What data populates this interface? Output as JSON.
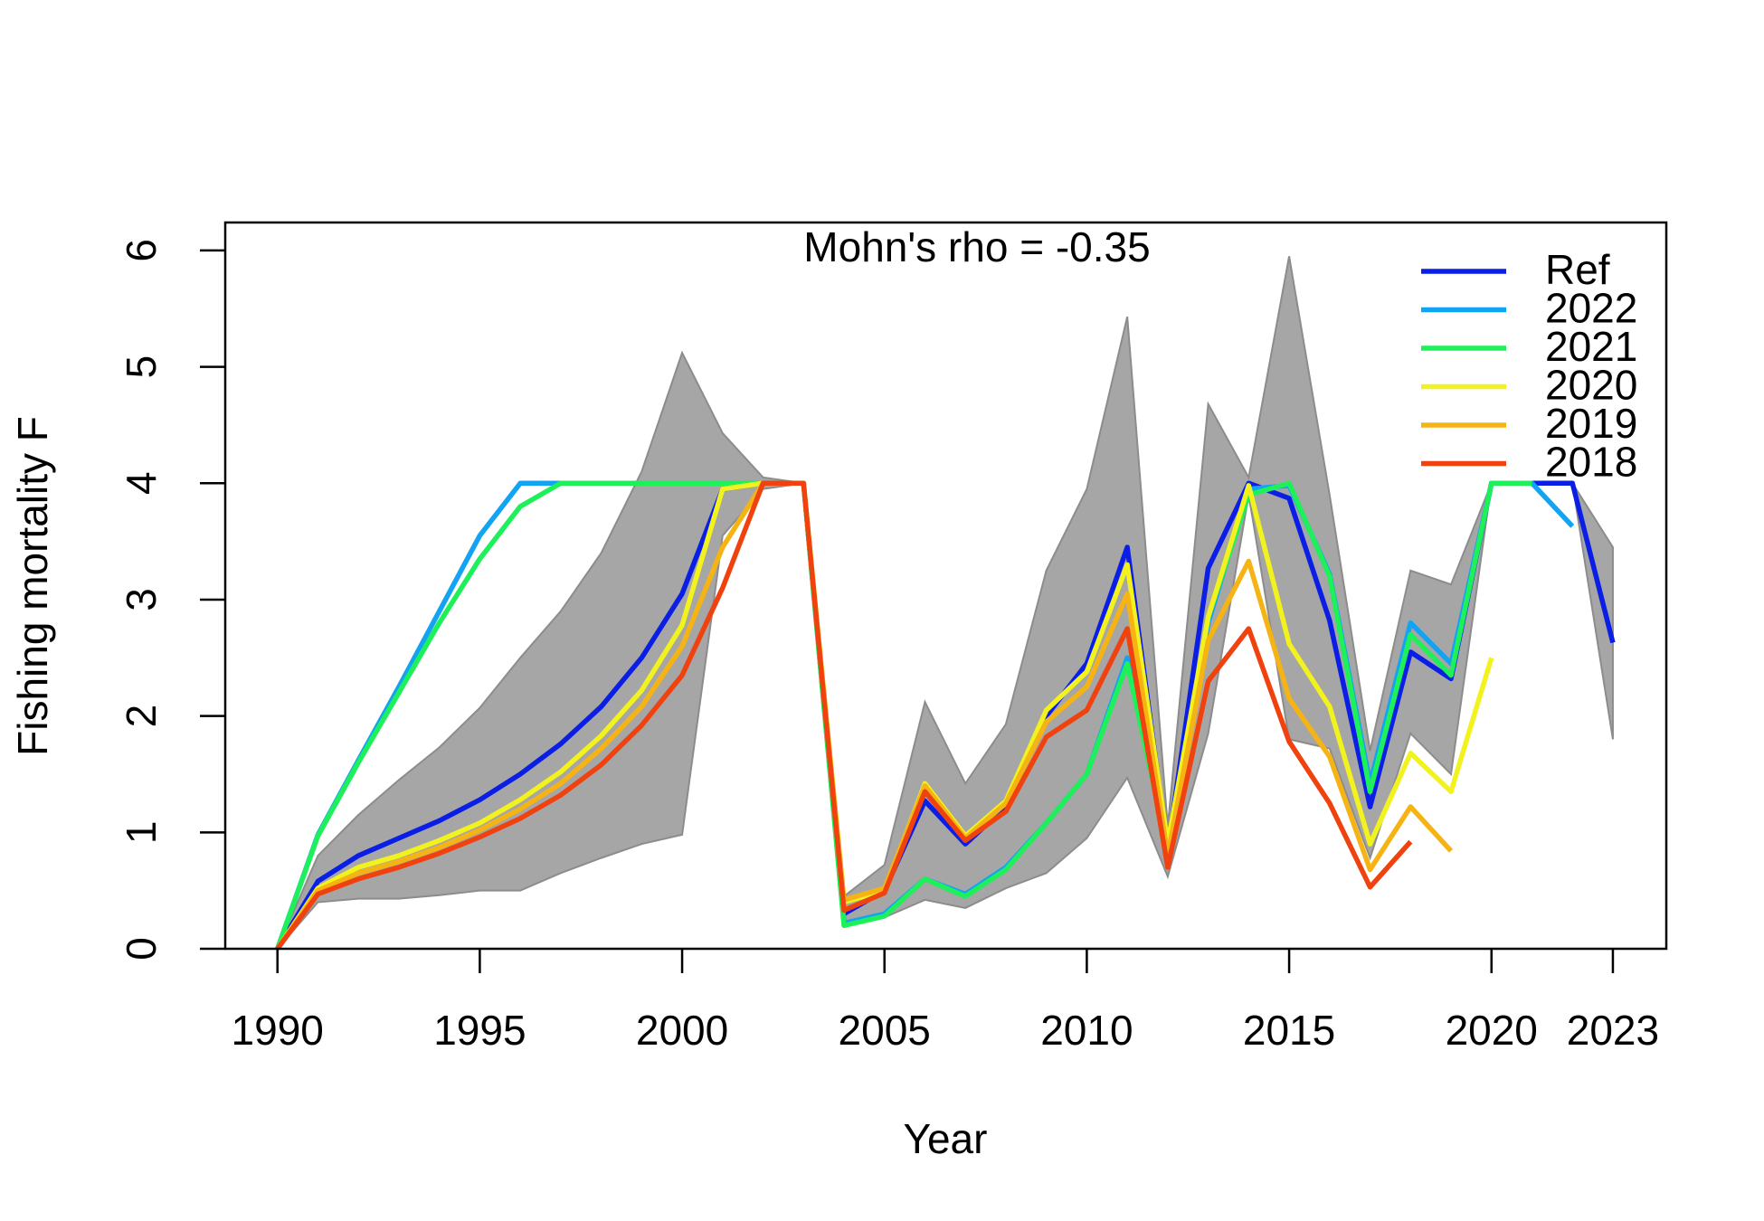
{
  "chart_data": {
    "type": "line",
    "annotation": "Mohn's rho = -0.35",
    "xlabel": "Year",
    "ylabel": "Fishing mortality F",
    "x": [
      1990,
      1991,
      1992,
      1993,
      1994,
      1995,
      1996,
      1997,
      1998,
      1999,
      2000,
      2001,
      2002,
      2003,
      2004,
      2005,
      2006,
      2007,
      2008,
      2009,
      2010,
      2011,
      2012,
      2013,
      2014,
      2015,
      2016,
      2017,
      2018,
      2019,
      2020,
      2021,
      2022,
      2023
    ],
    "xlim": [
      1988.71,
      2024.32
    ],
    "xticks": [
      1990,
      1995,
      2000,
      2005,
      2010,
      2015,
      2020,
      2023
    ],
    "ylim": [
      0,
      6.24
    ],
    "yticks": [
      0,
      1,
      2,
      3,
      4,
      5,
      6
    ],
    "legend": "topright",
    "band": {
      "color": "#a6a6a6",
      "upper": [
        0,
        0.8,
        1.15,
        1.45,
        1.73,
        2.07,
        2.5,
        2.9,
        3.4,
        4.1,
        5.12,
        4.43,
        4.05,
        4.0,
        0.45,
        0.72,
        2.12,
        1.42,
        1.93,
        3.25,
        3.95,
        5.43,
        1.05,
        4.68,
        4.05,
        5.95,
        3.9,
        1.7,
        3.25,
        3.13,
        4.0,
        4.0,
        4.0,
        3.45
      ],
      "lower": [
        0,
        0.4,
        0.43,
        0.43,
        0.46,
        0.5,
        0.5,
        0.65,
        0.78,
        0.9,
        0.98,
        3.55,
        3.95,
        4.0,
        0.22,
        0.27,
        0.42,
        0.35,
        0.52,
        0.65,
        0.95,
        1.47,
        0.62,
        1.85,
        3.9,
        1.8,
        1.72,
        0.78,
        1.85,
        1.5,
        4.0,
        4.0,
        4.0,
        1.8
      ]
    },
    "series": [
      {
        "name": "Ref",
        "color": "#0a1ee6",
        "values": [
          0,
          0.58,
          0.8,
          0.95,
          1.1,
          1.28,
          1.5,
          1.76,
          2.08,
          2.5,
          3.05,
          3.95,
          4.0,
          4.0,
          0.3,
          0.5,
          1.27,
          0.9,
          1.22,
          2.0,
          2.45,
          3.45,
          0.85,
          3.27,
          4.0,
          3.87,
          2.82,
          1.22,
          2.55,
          2.32,
          4.0,
          4.0,
          4.0,
          2.63
        ]
      },
      {
        "name": "2022",
        "color": "#12a4f2",
        "values": [
          0,
          0.98,
          1.62,
          2.25,
          2.9,
          3.55,
          4.0,
          4.0,
          4.0,
          4.0,
          4.0,
          4.0,
          4.0,
          4.0,
          0.22,
          0.3,
          0.6,
          0.47,
          0.7,
          1.08,
          1.5,
          2.5,
          0.85,
          2.8,
          3.95,
          3.98,
          3.22,
          1.42,
          2.8,
          2.45,
          4.0,
          4.0,
          3.63,
          null
        ]
      },
      {
        "name": "2021",
        "color": "#1ef05a",
        "values": [
          0,
          0.97,
          1.6,
          2.2,
          2.8,
          3.35,
          3.8,
          4.0,
          4.0,
          4.0,
          4.0,
          4.0,
          4.0,
          4.0,
          0.2,
          0.28,
          0.6,
          0.45,
          0.68,
          1.08,
          1.5,
          2.45,
          0.85,
          2.85,
          3.9,
          4.0,
          3.2,
          1.35,
          2.7,
          2.35,
          4.0,
          4.0,
          null,
          null
        ]
      },
      {
        "name": "2020",
        "color": "#f2f21e",
        "values": [
          0,
          0.52,
          0.7,
          0.8,
          0.93,
          1.08,
          1.28,
          1.52,
          1.83,
          2.22,
          2.78,
          3.95,
          4.0,
          4.0,
          0.4,
          0.5,
          1.42,
          0.97,
          1.27,
          2.05,
          2.38,
          3.3,
          0.9,
          2.85,
          3.98,
          2.62,
          2.08,
          0.9,
          1.68,
          1.35,
          2.5,
          null,
          null,
          null
        ]
      },
      {
        "name": "2019",
        "color": "#f5b414",
        "values": [
          0,
          0.5,
          0.65,
          0.75,
          0.87,
          1.02,
          1.2,
          1.42,
          1.72,
          2.08,
          2.6,
          3.45,
          4.0,
          4.0,
          0.42,
          0.52,
          1.4,
          0.95,
          1.25,
          1.95,
          2.25,
          3.05,
          0.8,
          2.65,
          3.33,
          2.15,
          1.65,
          0.68,
          1.22,
          0.84,
          null,
          null,
          null,
          null
        ]
      },
      {
        "name": "2018",
        "color": "#f0420f",
        "values": [
          0,
          0.47,
          0.6,
          0.7,
          0.82,
          0.96,
          1.12,
          1.32,
          1.58,
          1.92,
          2.35,
          3.1,
          4.0,
          4.0,
          0.33,
          0.48,
          1.35,
          0.93,
          1.18,
          1.82,
          2.05,
          2.75,
          0.7,
          2.3,
          2.75,
          1.78,
          1.25,
          0.53,
          0.92,
          null,
          null,
          null,
          null,
          null
        ]
      }
    ]
  }
}
